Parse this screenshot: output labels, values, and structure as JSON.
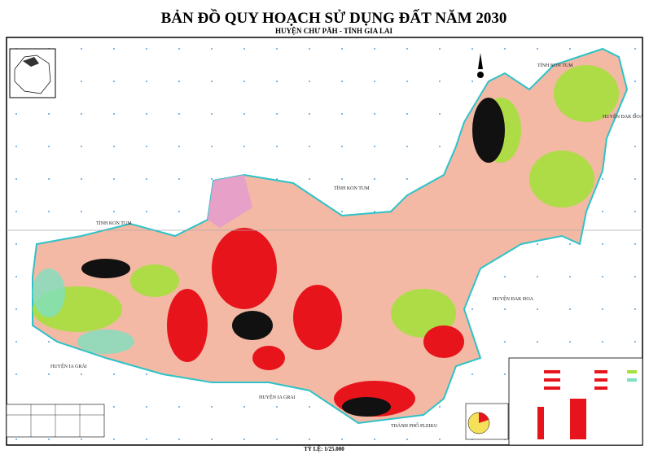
{
  "header": {
    "title": "BẢN ĐỒ QUY HOẠCH SỬ DỤNG ĐẤT NĂM 2030",
    "subtitle": "HUYỆN CHƯ PĂH - TỈNH GIA LAI"
  },
  "labels": [
    "TỈNH KON TUM",
    "TỈNH KON TUM",
    "TỈNH KON TUM",
    "HUYỆN ĐAK ĐOA",
    "HUYỆN ĐAK ĐOA",
    "HUYỆN IA GRẢI",
    "HUYỆN IA GRAI",
    "THÀNH PHỐ PLEIKU"
  ],
  "footer": {
    "scale": "TỶ LỆ: 1/25.000"
  }
}
